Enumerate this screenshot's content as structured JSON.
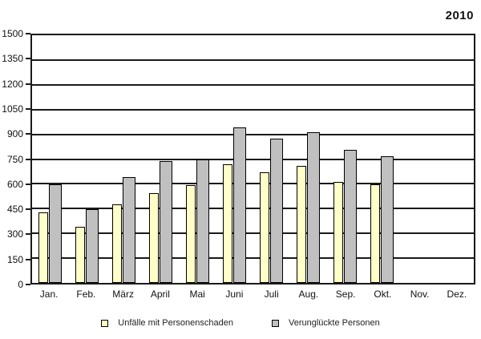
{
  "chart_data": {
    "type": "bar",
    "title": "2010",
    "categories": [
      "Jan.",
      "Feb.",
      "März",
      "April",
      "Mai",
      "Juni",
      "Juli",
      "Aug.",
      "Sep.",
      "Okt.",
      "Nov.",
      "Dez."
    ],
    "series": [
      {
        "name": "Unfälle mit Personenschaden",
        "color": "#FFFFC8",
        "values": [
          425,
          340,
          478,
          545,
          592,
          720,
          669,
          710,
          613,
          598,
          null,
          null
        ]
      },
      {
        "name": "Verunglückte Personen",
        "color": "#C0C0C0",
        "values": [
          596,
          447,
          640,
          736,
          748,
          940,
          874,
          913,
          806,
          768,
          null,
          null
        ]
      }
    ],
    "ylim": [
      0,
      1500
    ],
    "yticks": [
      0,
      150,
      300,
      450,
      600,
      750,
      900,
      1050,
      1200,
      1350,
      1500
    ],
    "grid": "horizontal",
    "gridline_color": "#1a1a1a",
    "legend_position": "bottom"
  }
}
